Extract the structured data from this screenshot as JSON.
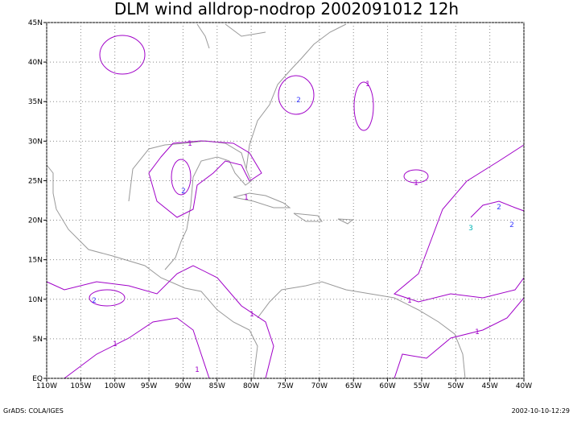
{
  "map": {
    "title": "DLM wind alldrop-nodrop 2002091012 12h",
    "lon_ticks": [
      {
        "value": -110,
        "label": "110W"
      },
      {
        "value": -105,
        "label": "105W"
      },
      {
        "value": -100,
        "label": "100W"
      },
      {
        "value": -95,
        "label": "95W"
      },
      {
        "value": -90,
        "label": "90W"
      },
      {
        "value": -85,
        "label": "85W"
      },
      {
        "value": -80,
        "label": "80W"
      },
      {
        "value": -75,
        "label": "75W"
      },
      {
        "value": -70,
        "label": "70W"
      },
      {
        "value": -65,
        "label": "65W"
      },
      {
        "value": -60,
        "label": "60W"
      },
      {
        "value": -55,
        "label": "55W"
      },
      {
        "value": -50,
        "label": "50W"
      },
      {
        "value": -45,
        "label": "45W"
      },
      {
        "value": -40,
        "label": "40W"
      }
    ],
    "lat_ticks": [
      {
        "value": 0,
        "label": "EQ"
      },
      {
        "value": 5,
        "label": "5N"
      },
      {
        "value": 10,
        "label": "10N"
      },
      {
        "value": 15,
        "label": "15N"
      },
      {
        "value": 20,
        "label": "20N"
      },
      {
        "value": 25,
        "label": "25N"
      },
      {
        "value": 30,
        "label": "30N"
      },
      {
        "value": 35,
        "label": "35N"
      },
      {
        "value": 40,
        "label": "40N"
      },
      {
        "value": 45,
        "label": "45N"
      }
    ],
    "contour_labels": [
      "1",
      "2",
      "2",
      "1",
      "2",
      "1",
      "1",
      "2",
      "3",
      "2",
      "1",
      "1",
      "1",
      "1",
      "1"
    ],
    "footer_left": "GrADS: COLA/IGES",
    "footer_right": "2002-10-10-12:29"
  }
}
